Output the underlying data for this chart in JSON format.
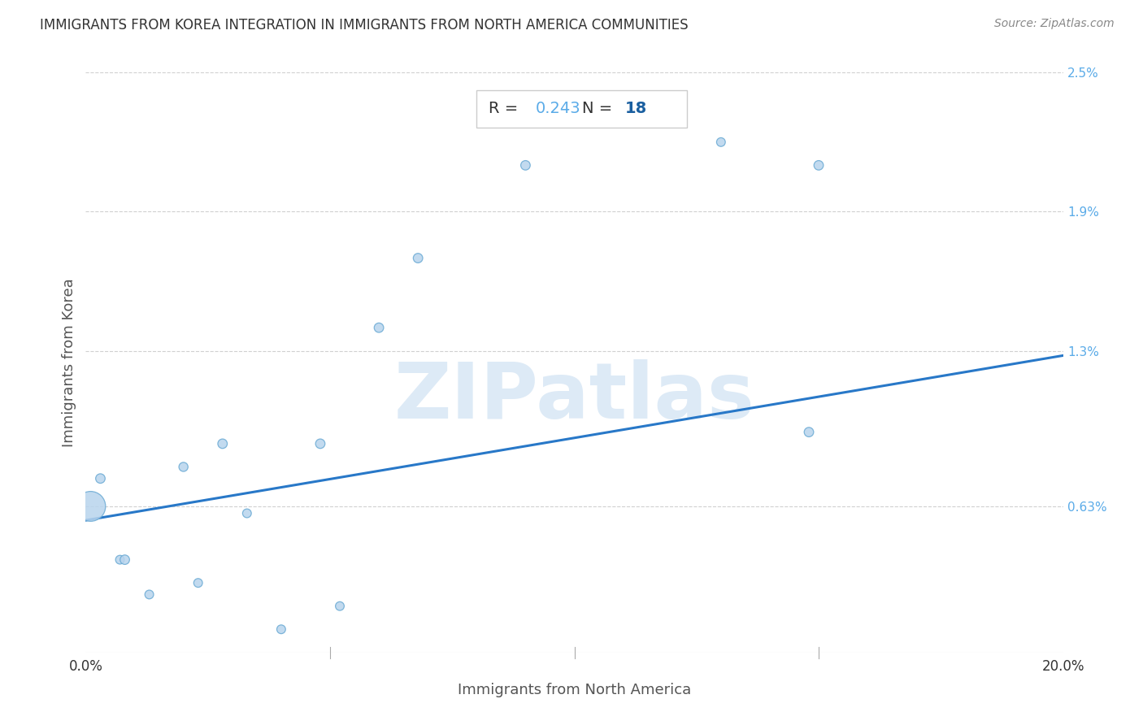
{
  "title": "IMMIGRANTS FROM KOREA INTEGRATION IN IMMIGRANTS FROM NORTH AMERICA COMMUNITIES",
  "source": "Source: ZipAtlas.com",
  "xlabel": "Immigrants from North America",
  "ylabel": "Immigrants from Korea",
  "R": 0.243,
  "N": 18,
  "xlim": [
    0.0,
    0.2
  ],
  "ylim": [
    0.0,
    0.025
  ],
  "xtick_labels": [
    "0.0%",
    "20.0%"
  ],
  "xtick_vals": [
    0.0,
    0.2
  ],
  "ytick_labels": [
    "2.5%",
    "1.9%",
    "1.3%",
    "0.63%"
  ],
  "ytick_vals": [
    0.025,
    0.019,
    0.013,
    0.0063
  ],
  "scatter_x": [
    0.001,
    0.003,
    0.007,
    0.008,
    0.013,
    0.02,
    0.023,
    0.028,
    0.033,
    0.04,
    0.048,
    0.052,
    0.06,
    0.068,
    0.09,
    0.13,
    0.148,
    0.15
  ],
  "scatter_y": [
    0.0063,
    0.0075,
    0.004,
    0.004,
    0.0025,
    0.008,
    0.003,
    0.009,
    0.006,
    0.001,
    0.009,
    0.002,
    0.014,
    0.017,
    0.021,
    0.022,
    0.0095,
    0.021
  ],
  "scatter_sizes": [
    700,
    70,
    60,
    70,
    60,
    65,
    60,
    70,
    60,
    60,
    70,
    60,
    70,
    70,
    70,
    60,
    70,
    70
  ],
  "scatter_color": "#b8d4ed",
  "scatter_edge_color": "#6aaad4",
  "regression_line_x": [
    0.0,
    0.2
  ],
  "regression_line_y": [
    0.0057,
    0.0128
  ],
  "regression_color": "#2878c8",
  "grid_color": "#d0d0d0",
  "background_color": "#ffffff",
  "title_color": "#333333",
  "source_color": "#888888",
  "axis_label_color": "#555555",
  "ytick_color": "#5aabe8",
  "xtick_color": "#333333",
  "watermark_color": "#ddeaf6",
  "watermark_text": "ZIPatlas",
  "annot_R_color": "#5aabe8",
  "annot_N_color": "#1a5fa0",
  "annot_text_color": "#333333",
  "annot_box_edge_color": "#cccccc"
}
